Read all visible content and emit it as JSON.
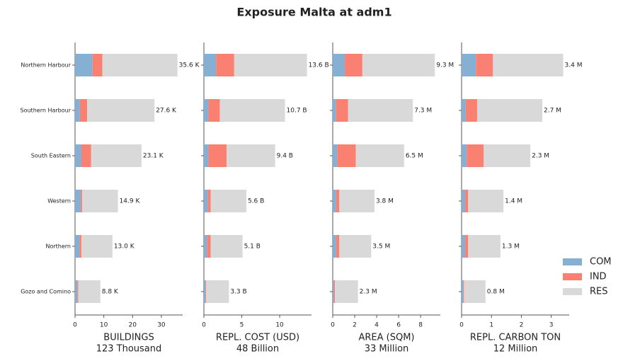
{
  "title": "Exposure Malta at adm1",
  "chart_data": [
    {
      "type": "bar",
      "orientation": "horizontal",
      "xlabel": "BUILDINGS",
      "total": "123 Thousand",
      "categories": [
        "Northern Harbour",
        "Southern Harbour",
        "South Eastern",
        "Western",
        "Northern",
        "Gozo and Comino"
      ],
      "series": [
        {
          "name": "COM",
          "color": "#85b0d3",
          "values": [
            6.1,
            1.7,
            2.2,
            2.0,
            1.5,
            0.8
          ]
        },
        {
          "name": "IND",
          "color": "#fa8072",
          "values": [
            3.4,
            2.5,
            3.4,
            0.5,
            0.7,
            0.3
          ]
        },
        {
          "name": "RES",
          "color": "#d9d9d9",
          "values": [
            26.1,
            23.4,
            17.5,
            12.4,
            10.8,
            7.7
          ]
        }
      ],
      "totals": [
        35.6,
        27.6,
        23.1,
        14.9,
        13.0,
        8.8
      ],
      "total_labels": [
        "35.6 K",
        "27.6 K",
        "23.1 K",
        "14.9 K",
        "13.0 K",
        "8.8 K"
      ],
      "xlim": [
        0,
        37.4
      ],
      "xticks": [
        0,
        10,
        20,
        30
      ]
    },
    {
      "type": "bar",
      "orientation": "horizontal",
      "xlabel": "REPL. COST (USD)",
      "total": "48 Billion",
      "series": [
        {
          "name": "COM",
          "color": "#85b0d3",
          "values": [
            1.6,
            0.6,
            0.6,
            0.5,
            0.4,
            0.2
          ]
        },
        {
          "name": "IND",
          "color": "#fa8072",
          "values": [
            2.4,
            1.5,
            2.4,
            0.4,
            0.5,
            0.1
          ]
        },
        {
          "name": "RES",
          "color": "#d9d9d9",
          "values": [
            9.6,
            8.6,
            6.4,
            4.7,
            4.2,
            3.0
          ]
        }
      ],
      "totals": [
        13.6,
        10.7,
        9.4,
        5.6,
        5.1,
        3.3
      ],
      "total_labels": [
        "13.6 B",
        "10.7 B",
        "9.4 B",
        "5.6 B",
        "5.1 B",
        "3.3 B"
      ],
      "xlim": [
        0,
        14.2
      ],
      "xticks": [
        0,
        5,
        10
      ]
    },
    {
      "type": "bar",
      "orientation": "horizontal",
      "xlabel": "AREA (SQM)",
      "total": "33 Million",
      "series": [
        {
          "name": "COM",
          "color": "#85b0d3",
          "values": [
            1.1,
            0.3,
            0.4,
            0.3,
            0.3,
            0.1
          ]
        },
        {
          "name": "IND",
          "color": "#fa8072",
          "values": [
            1.6,
            1.1,
            1.7,
            0.3,
            0.3,
            0.1
          ]
        },
        {
          "name": "RES",
          "color": "#d9d9d9",
          "values": [
            6.6,
            5.9,
            4.4,
            3.2,
            2.9,
            2.1
          ]
        }
      ],
      "totals": [
        9.3,
        7.3,
        6.5,
        3.8,
        3.5,
        2.3
      ],
      "total_labels": [
        "9.3 M",
        "7.3 M",
        "6.5 M",
        "3.8 M",
        "3.5 M",
        "2.3 M"
      ],
      "xlim": [
        0,
        9.8
      ],
      "xticks": [
        0,
        2,
        4,
        6,
        8
      ]
    },
    {
      "type": "bar",
      "orientation": "horizontal",
      "xlabel": "REPL. CARBON TON",
      "total": "12 Million",
      "series": [
        {
          "name": "COM",
          "color": "#85b0d3",
          "values": [
            0.48,
            0.14,
            0.17,
            0.12,
            0.12,
            0.05
          ]
        },
        {
          "name": "IND",
          "color": "#fa8072",
          "values": [
            0.57,
            0.38,
            0.57,
            0.1,
            0.1,
            0.03
          ]
        },
        {
          "name": "RES",
          "color": "#d9d9d9",
          "values": [
            2.35,
            2.18,
            1.56,
            1.18,
            1.08,
            0.72
          ]
        }
      ],
      "totals": [
        3.4,
        2.7,
        2.3,
        1.4,
        1.3,
        0.8
      ],
      "total_labels": [
        "3.4 M",
        "2.7 M",
        "2.3 M",
        "1.4 M",
        "1.3 M",
        "0.8 M"
      ],
      "xlim": [
        0,
        3.6
      ],
      "xticks": [
        0,
        1,
        2,
        3
      ],
      "legend": "lower right"
    }
  ]
}
